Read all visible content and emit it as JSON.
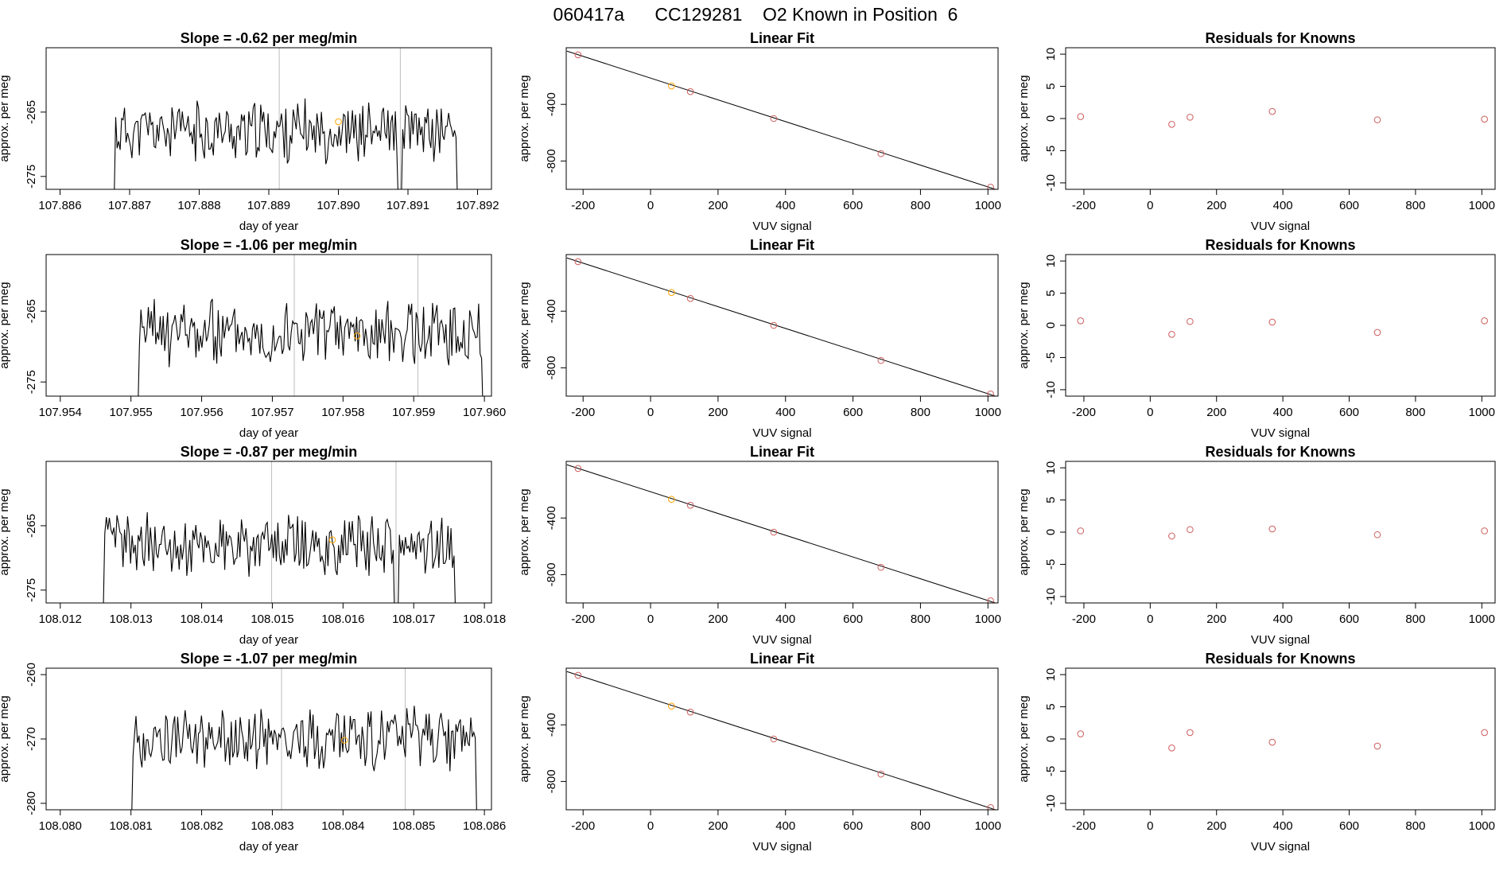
{
  "figure_title": "060417a      CC129281    O2 Known in Position  6",
  "colors": {
    "trace": "#000000",
    "guide": "#bebebe",
    "known_point": "#cd5c5c",
    "highlight_point": "#ffa500",
    "axis": "#000000"
  },
  "chart_data": [
    {
      "type": "line",
      "row": 0,
      "title": "Slope =  -0.62  per meg/min",
      "xlabel": "day of year",
      "ylabel": "approx. per meg",
      "xlim": [
        107.8858,
        107.8922
      ],
      "ylim": [
        -277,
        -255
      ],
      "xticks": [
        "107.886",
        "107.887",
        "107.888",
        "107.889",
        "107.890",
        "107.891",
        "107.892"
      ],
      "xtick_values": [
        107.886,
        107.887,
        107.888,
        107.889,
        107.89,
        107.891,
        107.892
      ],
      "yticks": [
        "-265",
        "-275"
      ],
      "ytick_values": [
        -265,
        -275
      ],
      "vlines": [
        107.88915,
        107.89089
      ],
      "trace_start": 107.88677,
      "trace_end": 107.89172,
      "trace_base": -268,
      "trace_amp": 4,
      "seed": 11,
      "dips": [
        [
          107.89089,
          -279
        ]
      ],
      "highlight": {
        "x": 107.89,
        "y": -266.5
      }
    },
    {
      "type": "scatter-fit",
      "row": 0,
      "title": "Linear Fit",
      "xlabel": "VUV signal",
      "ylabel": "approx. per meg",
      "xlim": [
        -250,
        1030
      ],
      "ylim": [
        -1000,
        0
      ],
      "xticks": [
        "-200",
        "0",
        "200",
        "400",
        "600",
        "800",
        "1000"
      ],
      "xtick_values": [
        -200,
        0,
        200,
        400,
        600,
        800,
        1000
      ],
      "yticks": [
        "-400",
        "-800"
      ],
      "ytick_values": [
        -400,
        -800
      ],
      "x": [
        -215,
        62,
        118,
        365,
        683,
        1008
      ],
      "y": [
        -50,
        -270,
        -310,
        -500,
        -748,
        -985
      ],
      "highlight_index": 1,
      "fit": {
        "x0": -248,
        "y0": -24,
        "x1": 1030,
        "y1": -1006
      }
    },
    {
      "type": "scatter",
      "row": 0,
      "title": "Residuals for Knowns",
      "xlabel": "VUV signal",
      "ylabel": "approx. per meg",
      "xlim": [
        -255,
        1040
      ],
      "ylim": [
        -11,
        11
      ],
      "xticks": [
        "-200",
        "0",
        "200",
        "400",
        "600",
        "800",
        "1000"
      ],
      "xtick_values": [
        -200,
        0,
        200,
        400,
        600,
        800,
        1000
      ],
      "yticks": [
        "-10",
        "-5",
        "0",
        "5",
        "10"
      ],
      "ytick_values": [
        -10,
        -5,
        0,
        5,
        10
      ],
      "x": [
        -210,
        65,
        120,
        368,
        685,
        1008
      ],
      "y": [
        0.3,
        -0.9,
        0.2,
        1.1,
        -0.2,
        -0.1
      ]
    },
    {
      "type": "line",
      "row": 1,
      "title": "Slope =  -1.06  per meg/min",
      "xlabel": "day of year",
      "ylabel": "approx. per meg",
      "xlim": [
        107.9538,
        107.9601
      ],
      "ylim": [
        -277,
        -257
      ],
      "xticks": [
        "107.954",
        "107.955",
        "107.956",
        "107.957",
        "107.958",
        "107.959",
        "107.960"
      ],
      "xtick_values": [
        107.954,
        107.955,
        107.956,
        107.957,
        107.958,
        107.959,
        107.96
      ],
      "yticks": [
        "-265",
        "-275"
      ],
      "ytick_values": [
        -265,
        -275
      ],
      "vlines": [
        107.95731,
        107.95906
      ],
      "trace_start": 107.95509,
      "trace_end": 107.95999,
      "trace_base": -268,
      "trace_amp": 4,
      "seed": 23,
      "dips": [],
      "highlight": {
        "x": 107.9582,
        "y": -268.5
      }
    },
    {
      "type": "scatter-fit",
      "row": 1,
      "title": "Linear Fit",
      "xlabel": "VUV signal",
      "ylabel": "approx. per meg",
      "xlim": [
        -250,
        1030
      ],
      "ylim": [
        -1000,
        0
      ],
      "xticks": [
        "-200",
        "0",
        "200",
        "400",
        "600",
        "800",
        "1000"
      ],
      "xtick_values": [
        -200,
        0,
        200,
        400,
        600,
        800,
        1000
      ],
      "yticks": [
        "-400",
        "-800"
      ],
      "ytick_values": [
        -400,
        -800
      ],
      "x": [
        -215,
        62,
        118,
        365,
        683,
        1008
      ],
      "y": [
        -50,
        -268,
        -310,
        -500,
        -748,
        -985
      ],
      "highlight_index": 1,
      "fit": {
        "x0": -248,
        "y0": -24,
        "x1": 1030,
        "y1": -1006
      }
    },
    {
      "type": "scatter",
      "row": 1,
      "title": "Residuals for Knowns",
      "xlabel": "VUV signal",
      "ylabel": "approx. per meg",
      "xlim": [
        -255,
        1040
      ],
      "ylim": [
        -11,
        11
      ],
      "xticks": [
        "-200",
        "0",
        "200",
        "400",
        "600",
        "800",
        "1000"
      ],
      "xtick_values": [
        -200,
        0,
        200,
        400,
        600,
        800,
        1000
      ],
      "yticks": [
        "-10",
        "-5",
        "0",
        "5",
        "10"
      ],
      "ytick_values": [
        -10,
        -5,
        0,
        5,
        10
      ],
      "x": [
        -210,
        65,
        120,
        368,
        685,
        1008
      ],
      "y": [
        0.7,
        -1.4,
        0.6,
        0.5,
        -1.1,
        0.7
      ]
    },
    {
      "type": "line",
      "row": 2,
      "title": "Slope =  -0.87  per meg/min",
      "xlabel": "day of year",
      "ylabel": "approx. per meg",
      "xlim": [
        108.0118,
        108.0181
      ],
      "ylim": [
        -277,
        -255
      ],
      "xticks": [
        "108.012",
        "108.013",
        "108.014",
        "108.015",
        "108.016",
        "108.017",
        "108.018"
      ],
      "xtick_values": [
        108.012,
        108.013,
        108.014,
        108.015,
        108.016,
        108.017,
        108.018
      ],
      "yticks": [
        "-265",
        "-275"
      ],
      "ytick_values": [
        -265,
        -275
      ],
      "vlines": [
        108.01499,
        108.01675
      ],
      "trace_start": 108.0126,
      "trace_end": 108.0176,
      "trace_base": -268,
      "trace_amp": 4,
      "seed": 37,
      "dips": [
        [
          108.01675,
          -281
        ]
      ],
      "highlight": {
        "x": 108.01585,
        "y": -267.2
      }
    },
    {
      "type": "scatter-fit",
      "row": 2,
      "title": "Linear Fit",
      "xlabel": "VUV signal",
      "ylabel": "approx. per meg",
      "xlim": [
        -250,
        1030
      ],
      "ylim": [
        -1000,
        0
      ],
      "xticks": [
        "-200",
        "0",
        "200",
        "400",
        "600",
        "800",
        "1000"
      ],
      "xtick_values": [
        -200,
        0,
        200,
        400,
        600,
        800,
        1000
      ],
      "yticks": [
        "-400",
        "-800"
      ],
      "ytick_values": [
        -400,
        -800
      ],
      "x": [
        -215,
        62,
        118,
        365,
        683,
        1008
      ],
      "y": [
        -50,
        -268,
        -310,
        -500,
        -748,
        -985
      ],
      "highlight_index": 1,
      "fit": {
        "x0": -248,
        "y0": -24,
        "x1": 1030,
        "y1": -1006
      }
    },
    {
      "type": "scatter",
      "row": 2,
      "title": "Residuals for Knowns",
      "xlabel": "VUV signal",
      "ylabel": "approx. per meg",
      "xlim": [
        -255,
        1040
      ],
      "ylim": [
        -11,
        11
      ],
      "xticks": [
        "-200",
        "0",
        "200",
        "400",
        "600",
        "800",
        "1000"
      ],
      "xtick_values": [
        -200,
        0,
        200,
        400,
        600,
        800,
        1000
      ],
      "yticks": [
        "-10",
        "-5",
        "0",
        "5",
        "10"
      ],
      "ytick_values": [
        -10,
        -5,
        0,
        5,
        10
      ],
      "x": [
        -210,
        65,
        120,
        368,
        685,
        1008
      ],
      "y": [
        0.2,
        -0.6,
        0.4,
        0.5,
        -0.4,
        0.2
      ]
    },
    {
      "type": "line",
      "row": 3,
      "title": "Slope =  -1.07  per meg/min",
      "xlabel": "day of year",
      "ylabel": "approx. per meg",
      "xlim": [
        108.0798,
        108.0861
      ],
      "ylim": [
        -281,
        -259
      ],
      "xticks": [
        "108.080",
        "108.081",
        "108.082",
        "108.083",
        "108.084",
        "108.085",
        "108.086"
      ],
      "xtick_values": [
        108.08,
        108.081,
        108.082,
        108.083,
        108.084,
        108.085,
        108.086
      ],
      "yticks": [
        "-260",
        "-270",
        "-280"
      ],
      "ytick_values": [
        -260,
        -270,
        -280
      ],
      "vlines": [
        108.08313,
        108.08488
      ],
      "trace_start": 108.081,
      "trace_end": 108.0859,
      "trace_base": -270,
      "trace_amp": 4,
      "seed": 53,
      "dips": [],
      "highlight": {
        "x": 108.08402,
        "y": -270.2
      }
    },
    {
      "type": "scatter-fit",
      "row": 3,
      "title": "Linear Fit",
      "xlabel": "VUV signal",
      "ylabel": "approx. per meg",
      "xlim": [
        -250,
        1030
      ],
      "ylim": [
        -1000,
        0
      ],
      "xticks": [
        "-200",
        "0",
        "200",
        "400",
        "600",
        "800",
        "1000"
      ],
      "xtick_values": [
        -200,
        0,
        200,
        400,
        600,
        800,
        1000
      ],
      "yticks": [
        "-400",
        "-800"
      ],
      "ytick_values": [
        -400,
        -800
      ],
      "x": [
        -215,
        62,
        118,
        365,
        683,
        1008
      ],
      "y": [
        -50,
        -268,
        -310,
        -500,
        -748,
        -985
      ],
      "highlight_index": 1,
      "fit": {
        "x0": -248,
        "y0": -24,
        "x1": 1030,
        "y1": -1006
      }
    },
    {
      "type": "scatter",
      "row": 3,
      "title": "Residuals for Knowns",
      "xlabel": "VUV signal",
      "ylabel": "approx. per meg",
      "xlim": [
        -255,
        1040
      ],
      "ylim": [
        -11,
        11
      ],
      "xticks": [
        "-200",
        "0",
        "200",
        "400",
        "600",
        "800",
        "1000"
      ],
      "xtick_values": [
        -200,
        0,
        200,
        400,
        600,
        800,
        1000
      ],
      "yticks": [
        "-10",
        "-5",
        "0",
        "5",
        "10"
      ],
      "ytick_values": [
        -10,
        -5,
        0,
        5,
        10
      ],
      "x": [
        -210,
        65,
        120,
        368,
        685,
        1008
      ],
      "y": [
        0.8,
        -1.4,
        1.0,
        -0.5,
        -1.1,
        1.0
      ]
    }
  ]
}
